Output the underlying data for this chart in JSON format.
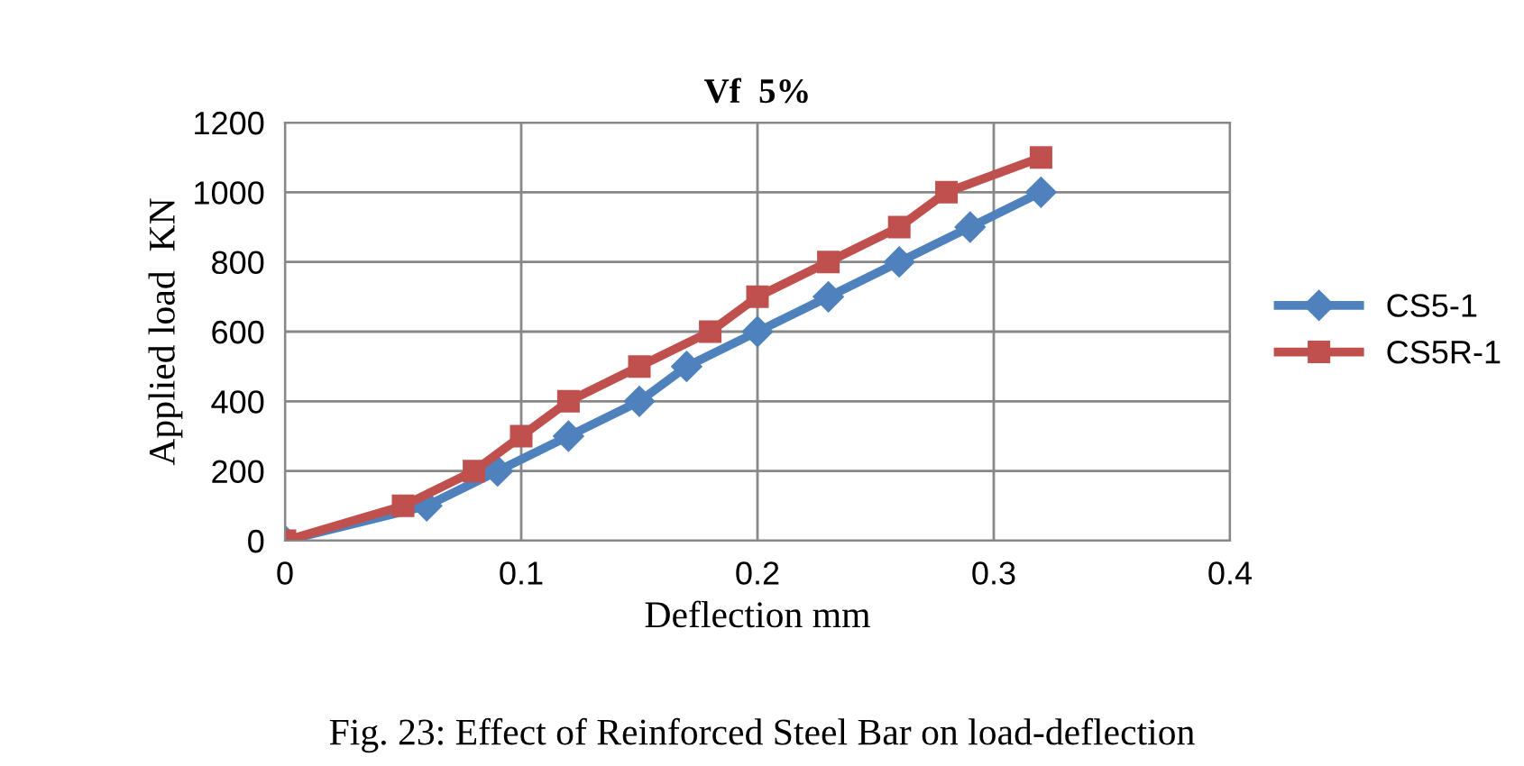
{
  "chart_data": {
    "type": "line",
    "title": "Vf  5%",
    "xlabel": "Deflection mm",
    "ylabel": "Applied load  KN",
    "series": [
      {
        "name": "CS5-1",
        "color": "#4f81bd",
        "marker": "diamond",
        "x": [
          0,
          0.06,
          0.09,
          0.12,
          0.15,
          0.17,
          0.2,
          0.23,
          0.26,
          0.29,
          0.32
        ],
        "values": [
          0,
          100,
          200,
          300,
          400,
          500,
          600,
          700,
          800,
          900,
          1000
        ]
      },
      {
        "name": "CS5R-1",
        "color": "#c0504d",
        "marker": "square",
        "x": [
          0,
          0.05,
          0.08,
          0.1,
          0.12,
          0.15,
          0.18,
          0.2,
          0.23,
          0.26,
          0.28,
          0.32
        ],
        "values": [
          0,
          100,
          200,
          300,
          400,
          500,
          600,
          700,
          800,
          900,
          1000,
          1100
        ]
      }
    ],
    "xlim": [
      0,
      0.4
    ],
    "xticks": [
      0,
      0.1,
      0.2,
      0.3,
      0.4
    ],
    "ylim": [
      0,
      1200
    ],
    "yticks": [
      0,
      200,
      400,
      600,
      800,
      1000,
      1200
    ],
    "grid": true,
    "legend": "right",
    "line_style": "solid",
    "annotations": [
      "Fig. 23: Effect of Reinforced Steel Bar on load-deflection"
    ]
  }
}
